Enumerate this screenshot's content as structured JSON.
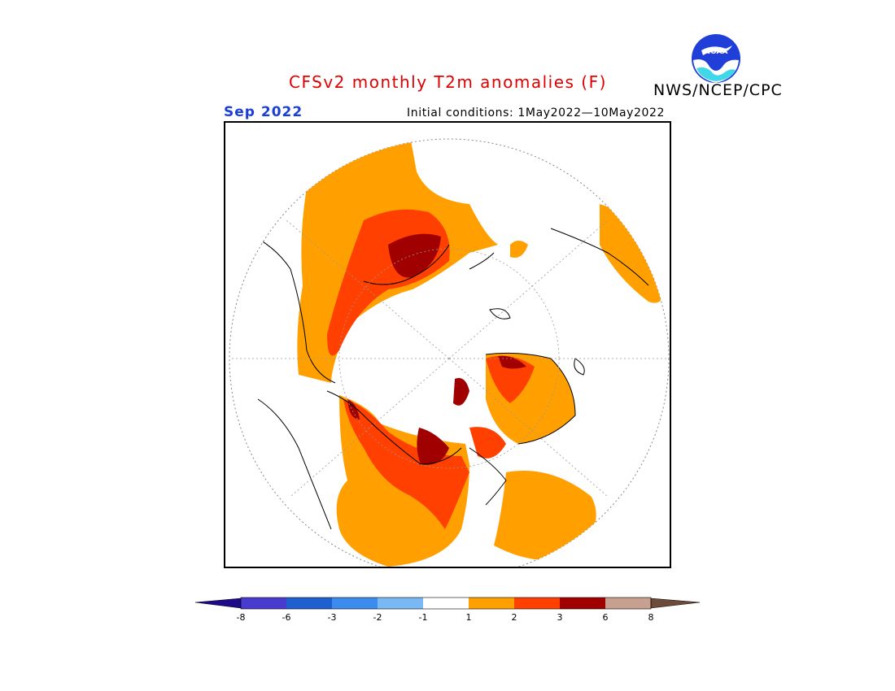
{
  "title": "CFSv2 monthly T2m anomalies (F)",
  "organization": "NWS/NCEP/CPC",
  "logo_text": "NOAA",
  "valid_month": "Sep 2022",
  "initial_conditions": "Initial conditions: 1May2022—10May2022",
  "colors": {
    "title": "#e00000",
    "month": "#1a3fd6",
    "below_8": "#1c0a8a",
    "m8_m6": "#4a3bd0",
    "m6_m3": "#1f60d0",
    "m3_m2": "#3c8cf0",
    "m2_m1": "#7ab8f5",
    "m1_1": "#ffffff",
    "p1_2": "#ffa000",
    "p2_3": "#ff4000",
    "p3_6": "#a00000",
    "p6_8": "#c8a090",
    "above_8": "#6e4a3a"
  },
  "legend": {
    "ticks": [
      "-8",
      "-6",
      "-3",
      "-2",
      "-1",
      "1",
      "2",
      "3",
      "6",
      "8"
    ]
  }
}
